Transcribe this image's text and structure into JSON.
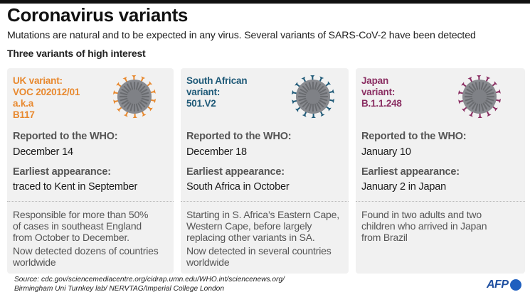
{
  "header": {
    "title": "Coronavirus variants",
    "subtitle": "Mutations are natural and to be expected in any virus. Several variants of SARS-CoV-2 have been detected",
    "section": "Three variants of high interest"
  },
  "labels": {
    "reported": "Reported to the WHO:",
    "earliest": "Earliest appearance:"
  },
  "cards": [
    {
      "name_lines": [
        "UK variant:",
        "VOC 202012/01",
        "a.k.a",
        "B117"
      ],
      "accent": "#e8892f",
      "icon": "coronavirus-icon",
      "reported": "December 14",
      "earliest": "traced to Kent in September",
      "desc1": [
        "Responsible for more than 50%",
        "of cases in southeast England",
        "from October to December."
      ],
      "desc2": [
        "Now detected dozens of countries",
        "worldwide"
      ]
    },
    {
      "name_lines": [
        "South African",
        "variant:",
        "501.V2"
      ],
      "accent": "#1f5a78",
      "icon": "coronavirus-icon",
      "reported": "December 18",
      "earliest": "South Africa in October",
      "desc1": [
        "Starting in S. Africa’s Eastern Cape,",
        "Western Cape, before largely",
        "replacing other variants in SA."
      ],
      "desc2": [
        "Now detected in several countries",
        "worldwide"
      ]
    },
    {
      "name_lines": [
        "Japan",
        "variant:",
        "B.1.1.248"
      ],
      "accent": "#8a2e62",
      "icon": "coronavirus-icon",
      "reported": "January 10",
      "earliest": "January 2 in Japan",
      "desc1": [
        "Found in two adults and two",
        "children who arrived in Japan",
        "from Brazil"
      ],
      "desc2": []
    }
  ],
  "footer": {
    "source_line1": "Source: cdc.gov/sciencemediacentre.org/cidrap.umn.edu/WHO.int/sciencenews.org/",
    "source_line2": "Birmingham Uni Turnkey lab/ NERVTAG/Imperial College London",
    "logo": "AFP",
    "logo_color": "#1f5fbf"
  }
}
